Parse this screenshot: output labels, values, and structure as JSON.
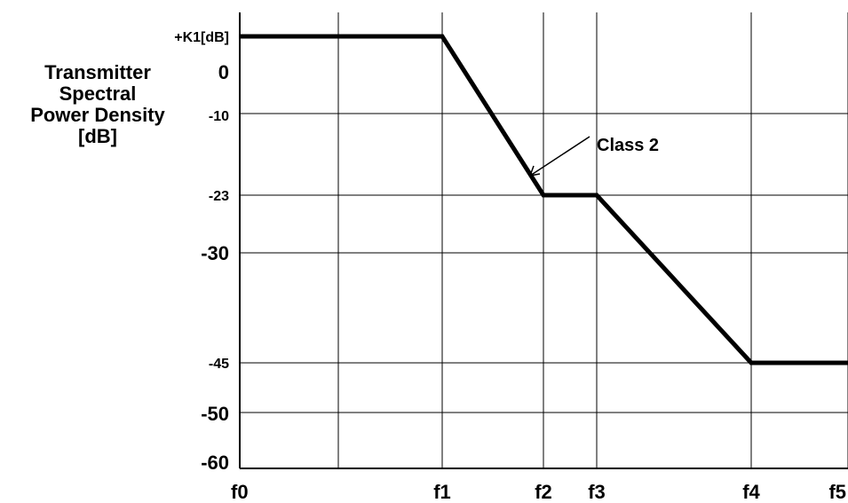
{
  "chart_data": {
    "type": "line",
    "ylabel_lines": [
      "Transmitter",
      "Spectral",
      "Power Density",
      "[dB]"
    ],
    "x_ticks": [
      "f0",
      "f1",
      "f2",
      "f3",
      "f4",
      "f5"
    ],
    "y_ticks": [
      {
        "label": "+K1[dB]",
        "small": true
      },
      {
        "label": "0",
        "small": false
      },
      {
        "label": "-10",
        "small": true
      },
      {
        "label": "-23",
        "small": true
      },
      {
        "label": "-30",
        "small": false
      },
      {
        "label": "-45",
        "small": true
      },
      {
        "label": "-50",
        "small": false
      },
      {
        "label": "-60",
        "small": false
      }
    ],
    "series": [
      {
        "name": "Class  2",
        "points": [
          {
            "x": "f0",
            "y": "+K1[dB]"
          },
          {
            "x": "f1",
            "y": "+K1[dB]"
          },
          {
            "x": "f2",
            "y": "-23"
          },
          {
            "x": "f3",
            "y": "-23"
          },
          {
            "x": "f4",
            "y": "-45"
          },
          {
            "x": "f5",
            "y": "-45"
          }
        ]
      }
    ],
    "annotations": [
      {
        "text": "Class  2",
        "points_to": "segment f1-f2"
      }
    ],
    "grid": true
  }
}
